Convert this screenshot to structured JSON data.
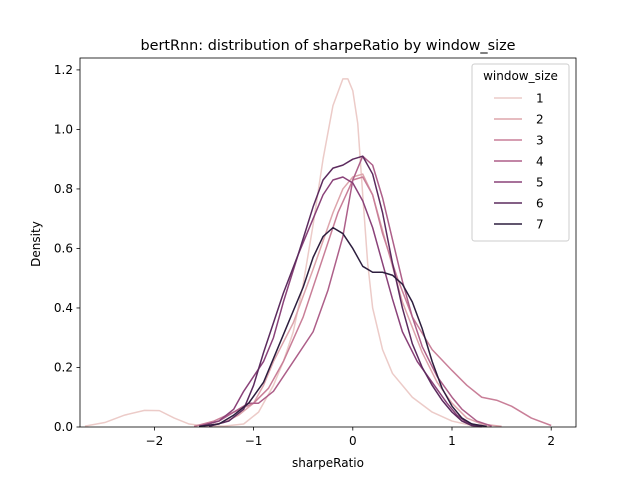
{
  "chart_data": {
    "type": "line",
    "title": "bertRnn: distribution of sharpeRatio by window_size",
    "xlabel": "sharpeRatio",
    "ylabel": "Density",
    "xlim": [
      -2.75,
      2.25
    ],
    "ylim": [
      0,
      1.24
    ],
    "xticks": [
      -2,
      -1,
      0,
      1,
      2
    ],
    "xtick_labels": [
      "−2",
      "−1",
      "0",
      "1",
      "2"
    ],
    "yticks": [
      0.0,
      0.2,
      0.4,
      0.6,
      0.8,
      1.0,
      1.2
    ],
    "ytick_labels": [
      "0.0",
      "0.2",
      "0.4",
      "0.6",
      "0.8",
      "1.0",
      "1.2"
    ],
    "grid": false,
    "legend": {
      "title": "window_size",
      "placement": "top-right"
    },
    "series": [
      {
        "name": "1",
        "color": "#eccbc8",
        "points": [
          [
            -2.7,
            0.003
          ],
          [
            -2.5,
            0.015
          ],
          [
            -2.3,
            0.04
          ],
          [
            -2.1,
            0.056
          ],
          [
            -1.95,
            0.055
          ],
          [
            -1.8,
            0.03
          ],
          [
            -1.65,
            0.01
          ],
          [
            -1.5,
            0.004
          ],
          [
            -1.3,
            0.003
          ],
          [
            -1.1,
            0.01
          ],
          [
            -0.95,
            0.05
          ],
          [
            -0.8,
            0.14
          ],
          [
            -0.7,
            0.22
          ],
          [
            -0.6,
            0.32
          ],
          [
            -0.5,
            0.48
          ],
          [
            -0.4,
            0.68
          ],
          [
            -0.3,
            0.9
          ],
          [
            -0.2,
            1.08
          ],
          [
            -0.1,
            1.17
          ],
          [
            -0.05,
            1.17
          ],
          [
            0.0,
            1.13
          ],
          [
            0.05,
            1.02
          ],
          [
            0.1,
            0.78
          ],
          [
            0.15,
            0.55
          ],
          [
            0.2,
            0.4
          ],
          [
            0.3,
            0.26
          ],
          [
            0.4,
            0.18
          ],
          [
            0.6,
            0.1
          ],
          [
            0.8,
            0.05
          ],
          [
            1.0,
            0.02
          ],
          [
            1.2,
            0.005
          ],
          [
            1.4,
            0.001
          ]
        ]
      },
      {
        "name": "2",
        "color": "#dda5ac",
        "points": [
          [
            -1.5,
            0.002
          ],
          [
            -1.3,
            0.015
          ],
          [
            -1.15,
            0.04
          ],
          [
            -1.0,
            0.08
          ],
          [
            -0.9,
            0.14
          ],
          [
            -0.8,
            0.22
          ],
          [
            -0.6,
            0.35
          ],
          [
            -0.4,
            0.53
          ],
          [
            -0.2,
            0.72
          ],
          [
            -0.1,
            0.8
          ],
          [
            0.0,
            0.84
          ],
          [
            0.1,
            0.85
          ],
          [
            0.2,
            0.78
          ],
          [
            0.35,
            0.6
          ],
          [
            0.5,
            0.42
          ],
          [
            0.7,
            0.25
          ],
          [
            0.85,
            0.15
          ],
          [
            1.0,
            0.08
          ],
          [
            1.15,
            0.03
          ],
          [
            1.3,
            0.01
          ],
          [
            1.5,
            0.002
          ]
        ]
      },
      {
        "name": "3",
        "color": "#c97f98",
        "points": [
          [
            -1.6,
            0.002
          ],
          [
            -1.4,
            0.02
          ],
          [
            -1.2,
            0.05
          ],
          [
            -1.0,
            0.08
          ],
          [
            -0.85,
            0.13
          ],
          [
            -0.7,
            0.22
          ],
          [
            -0.5,
            0.37
          ],
          [
            -0.3,
            0.57
          ],
          [
            -0.15,
            0.72
          ],
          [
            0.0,
            0.83
          ],
          [
            0.1,
            0.84
          ],
          [
            0.2,
            0.78
          ],
          [
            0.3,
            0.65
          ],
          [
            0.45,
            0.5
          ],
          [
            0.6,
            0.37
          ],
          [
            0.8,
            0.26
          ],
          [
            1.0,
            0.19
          ],
          [
            1.15,
            0.14
          ],
          [
            1.3,
            0.1
          ],
          [
            1.45,
            0.09
          ],
          [
            1.6,
            0.07
          ],
          [
            1.8,
            0.03
          ],
          [
            2.0,
            0.005
          ]
        ]
      },
      {
        "name": "4",
        "color": "#ad5f89",
        "points": [
          [
            -1.55,
            0.002
          ],
          [
            -1.35,
            0.02
          ],
          [
            -1.2,
            0.05
          ],
          [
            -1.05,
            0.08
          ],
          [
            -0.95,
            0.08
          ],
          [
            -0.8,
            0.12
          ],
          [
            -0.6,
            0.22
          ],
          [
            -0.4,
            0.32
          ],
          [
            -0.25,
            0.46
          ],
          [
            -0.1,
            0.64
          ],
          [
            0.0,
            0.83
          ],
          [
            0.1,
            0.91
          ],
          [
            0.2,
            0.88
          ],
          [
            0.3,
            0.77
          ],
          [
            0.4,
            0.63
          ],
          [
            0.5,
            0.49
          ],
          [
            0.6,
            0.37
          ],
          [
            0.7,
            0.27
          ],
          [
            0.85,
            0.17
          ],
          [
            1.0,
            0.1
          ],
          [
            1.1,
            0.06
          ],
          [
            1.25,
            0.02
          ],
          [
            1.4,
            0.003
          ]
        ]
      },
      {
        "name": "5",
        "color": "#8a4279",
        "points": [
          [
            -1.55,
            0.002
          ],
          [
            -1.35,
            0.02
          ],
          [
            -1.2,
            0.06
          ],
          [
            -1.1,
            0.12
          ],
          [
            -1.0,
            0.17
          ],
          [
            -0.9,
            0.22
          ],
          [
            -0.8,
            0.3
          ],
          [
            -0.7,
            0.42
          ],
          [
            -0.55,
            0.58
          ],
          [
            -0.4,
            0.7
          ],
          [
            -0.3,
            0.78
          ],
          [
            -0.2,
            0.83
          ],
          [
            -0.1,
            0.84
          ],
          [
            0.0,
            0.82
          ],
          [
            0.1,
            0.76
          ],
          [
            0.2,
            0.67
          ],
          [
            0.3,
            0.55
          ],
          [
            0.4,
            0.43
          ],
          [
            0.5,
            0.32
          ],
          [
            0.65,
            0.22
          ],
          [
            0.8,
            0.15
          ],
          [
            0.95,
            0.08
          ],
          [
            1.05,
            0.04
          ],
          [
            1.15,
            0.015
          ],
          [
            1.3,
            0.002
          ]
        ]
      },
      {
        "name": "6",
        "color": "#5c2b5e",
        "points": [
          [
            -1.45,
            0.002
          ],
          [
            -1.25,
            0.02
          ],
          [
            -1.1,
            0.06
          ],
          [
            -1.0,
            0.14
          ],
          [
            -0.9,
            0.25
          ],
          [
            -0.8,
            0.35
          ],
          [
            -0.7,
            0.45
          ],
          [
            -0.55,
            0.58
          ],
          [
            -0.4,
            0.74
          ],
          [
            -0.3,
            0.83
          ],
          [
            -0.2,
            0.87
          ],
          [
            -0.1,
            0.88
          ],
          [
            0.0,
            0.9
          ],
          [
            0.1,
            0.91
          ],
          [
            0.2,
            0.85
          ],
          [
            0.3,
            0.72
          ],
          [
            0.4,
            0.55
          ],
          [
            0.5,
            0.4
          ],
          [
            0.6,
            0.28
          ],
          [
            0.7,
            0.2
          ],
          [
            0.8,
            0.14
          ],
          [
            0.9,
            0.09
          ],
          [
            1.0,
            0.05
          ],
          [
            1.1,
            0.02
          ],
          [
            1.2,
            0.005
          ],
          [
            1.3,
            0.001
          ]
        ]
      },
      {
        "name": "7",
        "color": "#2d1e3e",
        "points": [
          [
            -1.55,
            0.002
          ],
          [
            -1.35,
            0.01
          ],
          [
            -1.2,
            0.04
          ],
          [
            -1.05,
            0.08
          ],
          [
            -0.9,
            0.15
          ],
          [
            -0.8,
            0.23
          ],
          [
            -0.65,
            0.35
          ],
          [
            -0.5,
            0.47
          ],
          [
            -0.4,
            0.57
          ],
          [
            -0.3,
            0.64
          ],
          [
            -0.2,
            0.67
          ],
          [
            -0.1,
            0.65
          ],
          [
            0.0,
            0.6
          ],
          [
            0.1,
            0.54
          ],
          [
            0.2,
            0.52
          ],
          [
            0.3,
            0.52
          ],
          [
            0.4,
            0.51
          ],
          [
            0.5,
            0.48
          ],
          [
            0.6,
            0.42
          ],
          [
            0.7,
            0.33
          ],
          [
            0.8,
            0.22
          ],
          [
            0.9,
            0.13
          ],
          [
            1.0,
            0.07
          ],
          [
            1.1,
            0.03
          ],
          [
            1.2,
            0.01
          ],
          [
            1.35,
            0.002
          ]
        ]
      }
    ]
  }
}
